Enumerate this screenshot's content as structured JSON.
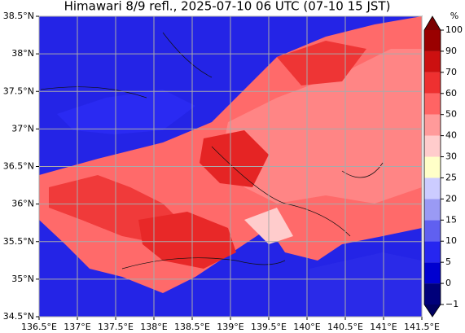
{
  "title": "Himawari 8/9 refl., 2025-07-10 06 UTC (07-10 15 JST)",
  "xlim": [
    136.5,
    141.5
  ],
  "ylim": [
    34.5,
    38.5
  ],
  "xticks": [
    {
      "value": 136.5,
      "label": "136.5°E"
    },
    {
      "value": 137,
      "label": "137°E"
    },
    {
      "value": 137.5,
      "label": "137.5°E"
    },
    {
      "value": 138,
      "label": "138°E"
    },
    {
      "value": 138.5,
      "label": "138.5°E"
    },
    {
      "value": 139,
      "label": "139°E"
    },
    {
      "value": 139.5,
      "label": "139.5°E"
    },
    {
      "value": 140,
      "label": "140°E"
    },
    {
      "value": 140.5,
      "label": "140.5°E"
    },
    {
      "value": 141,
      "label": "141°E"
    },
    {
      "value": 141.5,
      "label": "141.5°E"
    }
  ],
  "yticks": [
    {
      "value": 34.5,
      "label": "34.5°N"
    },
    {
      "value": 35,
      "label": "35°N"
    },
    {
      "value": 35.5,
      "label": "35.5°N"
    },
    {
      "value": 36,
      "label": "36°N"
    },
    {
      "value": 36.5,
      "label": "36.5°N"
    },
    {
      "value": 37,
      "label": "37°N"
    },
    {
      "value": 37.5,
      "label": "37.5°N"
    },
    {
      "value": 38,
      "label": "38°N"
    },
    {
      "value": 38.5,
      "label": "38.5°N"
    }
  ],
  "grid": true,
  "colorbar": {
    "label": "%",
    "levels": [
      {
        "value": -1,
        "label": "−1"
      },
      0,
      5,
      10,
      15,
      20,
      25,
      30,
      40,
      50,
      60,
      70,
      90,
      100
    ],
    "colors": [
      "#00007a",
      "#0000d0",
      "#2626f0",
      "#6060f0",
      "#9a9af4",
      "#ccccff",
      "#ffffc8",
      "#ffcccc",
      "#ff9a9a",
      "#ff6464",
      "#ee3030",
      "#cc1010",
      "#9a0000"
    ],
    "under_color": "#000060",
    "over_color": "#7a0000"
  }
}
